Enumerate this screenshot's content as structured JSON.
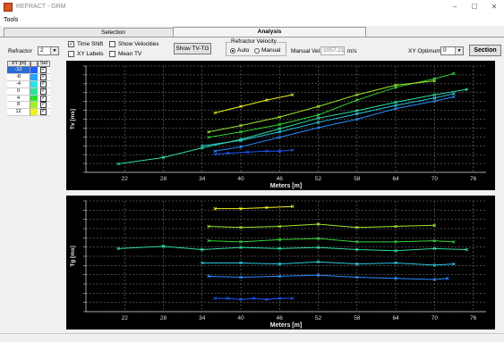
{
  "window": {
    "title": "REFRACT - GRM",
    "minimize": "–",
    "maximize": "☐",
    "close": "✕"
  },
  "menu": {
    "tools": "Tools"
  },
  "tabs": {
    "selection": "Selection",
    "analysis": "Analysis"
  },
  "controls": {
    "refractor_label": "Refractor",
    "refractor_value": "2",
    "time_shift": "Time Shift",
    "xy_labels": "XY Labels",
    "show_velocities": "Show Velocities",
    "mean_tv": "Mean TV",
    "show_tvtg": "Show TV-TG",
    "velocity_group": "Refractor Velocity",
    "auto": "Auto",
    "manual": "Manual",
    "manual_vel_label": "Manual Vel.",
    "manual_vel_value": "1057.21",
    "manual_vel_unit": "m/s",
    "xy_optimum_label": "XY Optimum",
    "xy_optimum_value": "0",
    "section": "Section"
  },
  "xy_table": {
    "col_xy": "XY [m]",
    "col_sel": "Sel",
    "rows": [
      {
        "xy": "-12",
        "color": "#1f5fff",
        "selected": true
      },
      {
        "xy": "-8",
        "color": "#26a6ff"
      },
      {
        "xy": "-4",
        "color": "#2de3e3"
      },
      {
        "xy": "0",
        "color": "#2de39a"
      },
      {
        "xy": "4",
        "color": "#2fe22f"
      },
      {
        "xy": "8",
        "color": "#a6ee2a"
      },
      {
        "xy": "12",
        "color": "#f2f21a"
      }
    ]
  },
  "chart_data": [
    {
      "type": "line",
      "title": "",
      "xlabel": "Meters [m]",
      "ylabel": "Tv [ms]",
      "xlim": [
        16,
        78
      ],
      "x_ticks": [
        "22",
        "28",
        "34",
        "40",
        "46",
        "52",
        "58",
        "64",
        "70",
        "76"
      ],
      "grid": true,
      "series": [
        {
          "color": "#2255ff",
          "x": [
            36,
            38,
            41,
            44,
            46,
            48
          ],
          "y": [
            0.17,
            0.18,
            0.19,
            0.2,
            0.2,
            0.21
          ]
        },
        {
          "color": "#2a8cff",
          "x": [
            36,
            40,
            46,
            52,
            58,
            64,
            70,
            73
          ],
          "y": [
            0.2,
            0.24,
            0.33,
            0.42,
            0.5,
            0.6,
            0.67,
            0.71
          ]
        },
        {
          "color": "#29c6e0",
          "x": [
            34,
            40,
            46,
            52,
            58,
            64,
            70,
            73
          ],
          "y": [
            0.25,
            0.3,
            0.38,
            0.47,
            0.55,
            0.63,
            0.7,
            0.74
          ]
        },
        {
          "color": "#2bdea0",
          "x": [
            21,
            28,
            34,
            40,
            46,
            52,
            58,
            64,
            70,
            75
          ],
          "y": [
            0.08,
            0.14,
            0.23,
            0.31,
            0.41,
            0.51,
            0.58,
            0.66,
            0.73,
            0.78
          ]
        },
        {
          "color": "#34d534",
          "x": [
            35,
            40,
            46,
            52,
            58,
            64,
            70,
            73
          ],
          "y": [
            0.33,
            0.38,
            0.45,
            0.54,
            0.68,
            0.8,
            0.88,
            0.93
          ]
        },
        {
          "color": "#9fe82c",
          "x": [
            35,
            40,
            46,
            52,
            58,
            64,
            70
          ],
          "y": [
            0.38,
            0.44,
            0.52,
            0.62,
            0.73,
            0.82,
            0.86
          ]
        },
        {
          "color": "#f0f020",
          "x": [
            36,
            40,
            44,
            48
          ],
          "y": [
            0.56,
            0.62,
            0.68,
            0.73
          ]
        }
      ]
    },
    {
      "type": "line",
      "title": "",
      "xlabel": "Meters [m]",
      "ylabel": "Tg [ms]",
      "xlim": [
        16,
        78
      ],
      "x_ticks": [
        "22",
        "28",
        "34",
        "40",
        "46",
        "52",
        "58",
        "64",
        "70",
        "76"
      ],
      "grid": true,
      "series": [
        {
          "color": "#2255ff",
          "x": [
            36,
            38,
            40,
            42,
            44,
            46,
            48
          ],
          "y": [
            0.12,
            0.12,
            0.11,
            0.12,
            0.11,
            0.12,
            0.12
          ]
        },
        {
          "color": "#2a8cff",
          "x": [
            35,
            40,
            46,
            52,
            58,
            64,
            70,
            72
          ],
          "y": [
            0.32,
            0.31,
            0.32,
            0.33,
            0.31,
            0.3,
            0.29,
            0.3
          ]
        },
        {
          "color": "#29c6e0",
          "x": [
            34,
            40,
            46,
            52,
            58,
            64,
            70,
            73
          ],
          "y": [
            0.44,
            0.44,
            0.43,
            0.45,
            0.43,
            0.44,
            0.42,
            0.43
          ]
        },
        {
          "color": "#2bdea0",
          "x": [
            21,
            28,
            34,
            40,
            46,
            52,
            58,
            64,
            70,
            75
          ],
          "y": [
            0.57,
            0.59,
            0.56,
            0.58,
            0.57,
            0.58,
            0.56,
            0.55,
            0.57,
            0.56
          ]
        },
        {
          "color": "#34d534",
          "x": [
            35,
            40,
            46,
            52,
            58,
            64,
            70,
            73
          ],
          "y": [
            0.64,
            0.63,
            0.65,
            0.66,
            0.63,
            0.63,
            0.64,
            0.63
          ]
        },
        {
          "color": "#9fe82c",
          "x": [
            35,
            40,
            46,
            52,
            58,
            64,
            70
          ],
          "y": [
            0.77,
            0.76,
            0.77,
            0.79,
            0.76,
            0.77,
            0.78
          ]
        },
        {
          "color": "#f0f020",
          "x": [
            36,
            40,
            44,
            48
          ],
          "y": [
            0.93,
            0.93,
            0.94,
            0.95
          ]
        }
      ]
    }
  ]
}
